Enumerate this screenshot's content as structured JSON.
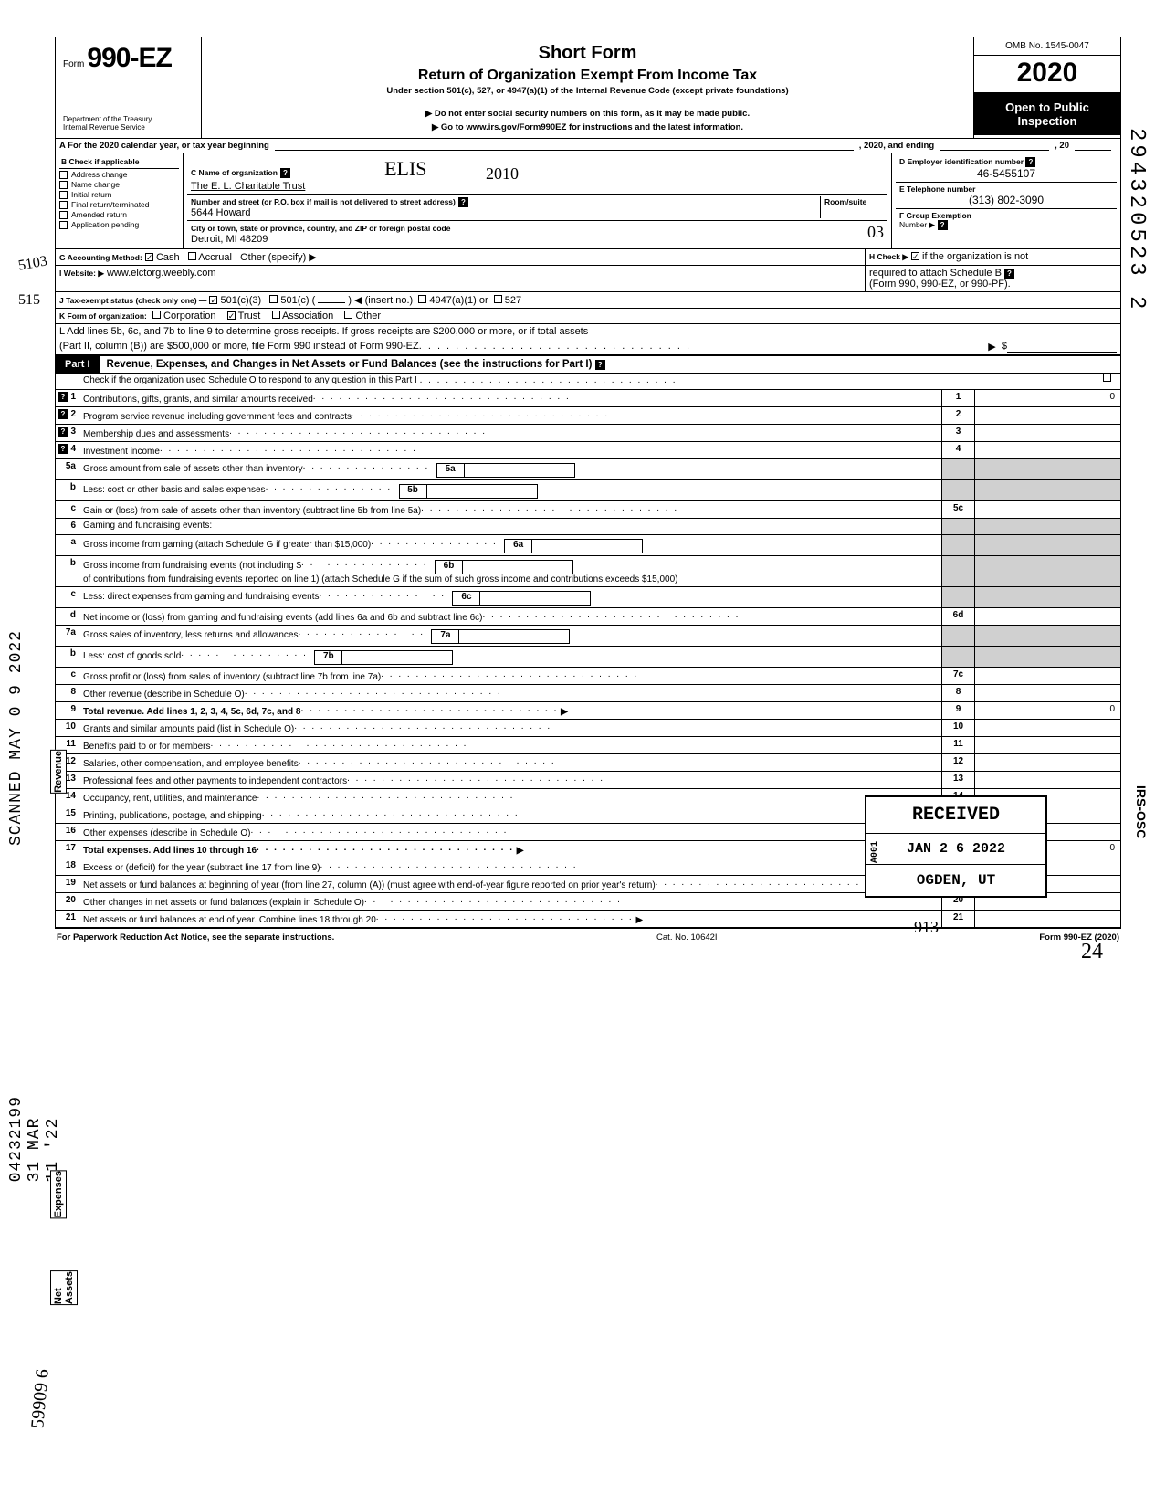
{
  "header": {
    "form_prefix": "Form",
    "form_number": "990-EZ",
    "dept1": "Department of the Treasury",
    "dept2": "Internal Revenue Service",
    "short_form": "Short Form",
    "return_of": "Return of Organization Exempt From Income Tax",
    "under": "Under section 501(c), 527, or 4947(a)(1) of the Internal Revenue Code (except private foundations)",
    "arrow1": "▶ Do not enter social security numbers on this form, as it may be made public.",
    "arrow2": "▶ Go to www.irs.gov/Form990EZ for instructions and the latest information.",
    "omb": "OMB No. 1545-0047",
    "year": "2020",
    "open1": "Open to Public",
    "open2": "Inspection"
  },
  "line_a": "A  For the 2020 calendar year, or tax year beginning",
  "line_a_mid": ", 2020, and ending",
  "line_a_end": ", 20",
  "sec_b": {
    "title": "B  Check if applicable",
    "items": [
      "Address change",
      "Name change",
      "Initial return",
      "Final return/terminated",
      "Amended return",
      "Application pending"
    ]
  },
  "sec_c": {
    "lbl_name": "C  Name of organization",
    "name": "The E. L. Charitable Trust",
    "hand_name": "ELIS",
    "lbl_street": "Number and street (or P.O. box if mail is not delivered to street address)",
    "room": "Room/suite",
    "street": "5644 Howard",
    "lbl_city": "City or town, state or province, country, and ZIP or foreign postal code",
    "city": "Detroit, MI 48209",
    "hand_zip": "03"
  },
  "sec_d": {
    "lbl": "D Employer identification number",
    "val": "46-5455107"
  },
  "sec_e": {
    "lbl": "E  Telephone number",
    "val": "(313) 802-3090"
  },
  "sec_f": {
    "lbl": "F  Group Exemption",
    "lbl2": "Number  ▶"
  },
  "sec_g": {
    "lbl": "G  Accounting Method:",
    "cash": "Cash",
    "accrual": "Accrual",
    "other": "Other (specify) ▶"
  },
  "sec_h": {
    "lbl": "H  Check ▶",
    "txt": "if the organization is not",
    "txt2": "required to attach Schedule B",
    "txt3": "(Form 990, 990-EZ, or 990-PF)."
  },
  "sec_i": {
    "lbl": "I  Website: ▶",
    "val": "www.elctorg.weebly.com"
  },
  "sec_j": {
    "lbl": "J  Tax-exempt status (check only one) —",
    "a": "501(c)(3)",
    "b": "501(c) (",
    "b2": ")  ◀ (insert no.)",
    "c": "4947(a)(1) or",
    "d": "527"
  },
  "sec_k": {
    "lbl": "K  Form of organization:",
    "corp": "Corporation",
    "trust": "Trust",
    "assoc": "Association",
    "other": "Other"
  },
  "sec_l": {
    "line1": "L  Add lines 5b, 6c, and 7b to line 9 to determine gross receipts. If gross receipts are $200,000 or more, or if total assets",
    "line2": "(Part II, column (B)) are $500,000 or more, file Form 990 instead of Form 990-EZ",
    "arrow": "▶",
    "dollar": "$"
  },
  "part1": {
    "tag": "Part I",
    "title": "Revenue, Expenses, and Changes in Net Assets or Fund Balances (see the instructions for Part I)",
    "check": "Check if the organization used Schedule O to respond to any question in this Part I"
  },
  "side": {
    "revenue": "Revenue",
    "expenses": "Expenses",
    "net": "Net Assets"
  },
  "lines": {
    "l1": {
      "n": "1",
      "t": "Contributions, gifts, grants, and similar amounts received",
      "bn": "1",
      "v": "0"
    },
    "l2": {
      "n": "2",
      "t": "Program service revenue including government fees and contracts",
      "bn": "2",
      "v": ""
    },
    "l3": {
      "n": "3",
      "t": "Membership dues and assessments",
      "bn": "3",
      "v": ""
    },
    "l4": {
      "n": "4",
      "t": "Investment income",
      "bn": "4",
      "v": ""
    },
    "l5a": {
      "n": "5a",
      "t": "Gross amount from sale of assets other than inventory",
      "ibn": "5a"
    },
    "l5b": {
      "n": "b",
      "t": "Less: cost or other basis and sales expenses",
      "ibn": "5b"
    },
    "l5c": {
      "n": "c",
      "t": "Gain or (loss) from sale of assets other than inventory (subtract line 5b from line 5a)",
      "bn": "5c",
      "v": ""
    },
    "l6": {
      "n": "6",
      "t": "Gaming and fundraising events:"
    },
    "l6a": {
      "n": "a",
      "t": "Gross income from gaming (attach Schedule G if greater than $15,000)",
      "ibn": "6a"
    },
    "l6b": {
      "n": "b",
      "t": "Gross income from fundraising events (not including  $",
      "t2": "of contributions from fundraising events reported on line 1) (attach Schedule G if the sum of such gross income and contributions exceeds $15,000)",
      "ibn": "6b"
    },
    "l6c": {
      "n": "c",
      "t": "Less: direct expenses from gaming and fundraising events",
      "ibn": "6c"
    },
    "l6d": {
      "n": "d",
      "t": "Net income or (loss) from gaming and fundraising events (add lines 6a and 6b and subtract line 6c)",
      "bn": "6d",
      "v": ""
    },
    "l7a": {
      "n": "7a",
      "t": "Gross sales of inventory, less returns and allowances",
      "ibn": "7a"
    },
    "l7b": {
      "n": "b",
      "t": "Less: cost of goods sold",
      "ibn": "7b"
    },
    "l7c": {
      "n": "c",
      "t": "Gross profit or (loss) from sales of inventory (subtract line 7b from line 7a)",
      "bn": "7c",
      "v": ""
    },
    "l8": {
      "n": "8",
      "t": "Other revenue (describe in Schedule O)",
      "bn": "8",
      "v": ""
    },
    "l9": {
      "n": "9",
      "t": "Total revenue. Add lines 1, 2, 3, 4, 5c, 6d, 7c, and 8",
      "bn": "9",
      "v": "0",
      "bold": true
    },
    "l10": {
      "n": "10",
      "t": "Grants and similar amounts paid (list in Schedule O)",
      "bn": "10",
      "v": ""
    },
    "l11": {
      "n": "11",
      "t": "Benefits paid to or for members",
      "bn": "11",
      "v": ""
    },
    "l12": {
      "n": "12",
      "t": "Salaries, other compensation, and employee benefits",
      "bn": "12",
      "v": ""
    },
    "l13": {
      "n": "13",
      "t": "Professional fees and other payments to independent contractors",
      "bn": "13",
      "v": ""
    },
    "l14": {
      "n": "14",
      "t": "Occupancy, rent, utilities, and maintenance",
      "bn": "14",
      "v": ""
    },
    "l15": {
      "n": "15",
      "t": "Printing, publications, postage, and shipping",
      "bn": "15",
      "v": ""
    },
    "l16": {
      "n": "16",
      "t": "Other expenses (describe in Schedule O)",
      "bn": "16",
      "v": ""
    },
    "l17": {
      "n": "17",
      "t": "Total expenses. Add lines 10 through 16",
      "bn": "17",
      "v": "0",
      "bold": true
    },
    "l18": {
      "n": "18",
      "t": "Excess or (deficit) for the year (subtract line 17 from line 9)",
      "bn": "18",
      "v": ""
    },
    "l19": {
      "n": "19",
      "t": "Net assets or fund balances at beginning of year (from line 27, column (A)) (must agree with end-of-year figure reported on prior year's return)",
      "bn": "19",
      "v": ""
    },
    "l20": {
      "n": "20",
      "t": "Other changes in net assets or fund balances (explain in Schedule O)",
      "bn": "20",
      "v": ""
    },
    "l21": {
      "n": "21",
      "t": "Net assets or fund balances at end of year. Combine lines 18 through 20",
      "bn": "21",
      "v": "",
      "arrow": "▶"
    }
  },
  "footer": {
    "left": "For Paperwork Reduction Act Notice, see the separate instructions.",
    "mid": "Cat. No. 10642I",
    "right": "Form 990-EZ (2020)"
  },
  "stamps": {
    "scanned": "SCANNED MAY 0 9 2022",
    "dln": "04232199 31 MAR 11 '22",
    "recv1": "RECEIVED",
    "recv2": "JAN 2 6 2022",
    "recv3": "OGDEN, UT",
    "a001": "A001",
    "vert_num": "294320523   2",
    "osc": "IRS-OSC",
    "hand_913": "913",
    "hand_24": "24",
    "hand_59909": "59909 6",
    "hand_5103": "5103",
    "hand_515": "515",
    "hand_2010": "2010"
  }
}
